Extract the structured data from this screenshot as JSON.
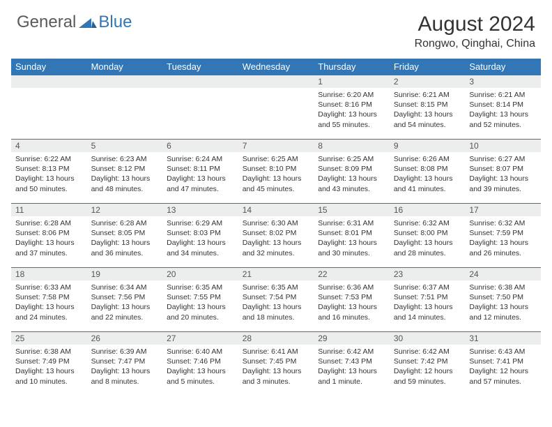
{
  "logo": {
    "general": "General",
    "blue": "Blue"
  },
  "header": {
    "month_title": "August 2024",
    "location": "Rongwo, Qinghai, China"
  },
  "colors": {
    "header_bg": "#3276b5",
    "daynum_bg": "#eceded",
    "border": "#3276b5"
  },
  "dow": [
    "Sunday",
    "Monday",
    "Tuesday",
    "Wednesday",
    "Thursday",
    "Friday",
    "Saturday"
  ],
  "weeks": [
    [
      {
        "n": "",
        "sr": "",
        "ss": "",
        "dl": ""
      },
      {
        "n": "",
        "sr": "",
        "ss": "",
        "dl": ""
      },
      {
        "n": "",
        "sr": "",
        "ss": "",
        "dl": ""
      },
      {
        "n": "",
        "sr": "",
        "ss": "",
        "dl": ""
      },
      {
        "n": "1",
        "sr": "Sunrise: 6:20 AM",
        "ss": "Sunset: 8:16 PM",
        "dl": "Daylight: 13 hours and 55 minutes."
      },
      {
        "n": "2",
        "sr": "Sunrise: 6:21 AM",
        "ss": "Sunset: 8:15 PM",
        "dl": "Daylight: 13 hours and 54 minutes."
      },
      {
        "n": "3",
        "sr": "Sunrise: 6:21 AM",
        "ss": "Sunset: 8:14 PM",
        "dl": "Daylight: 13 hours and 52 minutes."
      }
    ],
    [
      {
        "n": "4",
        "sr": "Sunrise: 6:22 AM",
        "ss": "Sunset: 8:13 PM",
        "dl": "Daylight: 13 hours and 50 minutes."
      },
      {
        "n": "5",
        "sr": "Sunrise: 6:23 AM",
        "ss": "Sunset: 8:12 PM",
        "dl": "Daylight: 13 hours and 48 minutes."
      },
      {
        "n": "6",
        "sr": "Sunrise: 6:24 AM",
        "ss": "Sunset: 8:11 PM",
        "dl": "Daylight: 13 hours and 47 minutes."
      },
      {
        "n": "7",
        "sr": "Sunrise: 6:25 AM",
        "ss": "Sunset: 8:10 PM",
        "dl": "Daylight: 13 hours and 45 minutes."
      },
      {
        "n": "8",
        "sr": "Sunrise: 6:25 AM",
        "ss": "Sunset: 8:09 PM",
        "dl": "Daylight: 13 hours and 43 minutes."
      },
      {
        "n": "9",
        "sr": "Sunrise: 6:26 AM",
        "ss": "Sunset: 8:08 PM",
        "dl": "Daylight: 13 hours and 41 minutes."
      },
      {
        "n": "10",
        "sr": "Sunrise: 6:27 AM",
        "ss": "Sunset: 8:07 PM",
        "dl": "Daylight: 13 hours and 39 minutes."
      }
    ],
    [
      {
        "n": "11",
        "sr": "Sunrise: 6:28 AM",
        "ss": "Sunset: 8:06 PM",
        "dl": "Daylight: 13 hours and 37 minutes."
      },
      {
        "n": "12",
        "sr": "Sunrise: 6:28 AM",
        "ss": "Sunset: 8:05 PM",
        "dl": "Daylight: 13 hours and 36 minutes."
      },
      {
        "n": "13",
        "sr": "Sunrise: 6:29 AM",
        "ss": "Sunset: 8:03 PM",
        "dl": "Daylight: 13 hours and 34 minutes."
      },
      {
        "n": "14",
        "sr": "Sunrise: 6:30 AM",
        "ss": "Sunset: 8:02 PM",
        "dl": "Daylight: 13 hours and 32 minutes."
      },
      {
        "n": "15",
        "sr": "Sunrise: 6:31 AM",
        "ss": "Sunset: 8:01 PM",
        "dl": "Daylight: 13 hours and 30 minutes."
      },
      {
        "n": "16",
        "sr": "Sunrise: 6:32 AM",
        "ss": "Sunset: 8:00 PM",
        "dl": "Daylight: 13 hours and 28 minutes."
      },
      {
        "n": "17",
        "sr": "Sunrise: 6:32 AM",
        "ss": "Sunset: 7:59 PM",
        "dl": "Daylight: 13 hours and 26 minutes."
      }
    ],
    [
      {
        "n": "18",
        "sr": "Sunrise: 6:33 AM",
        "ss": "Sunset: 7:58 PM",
        "dl": "Daylight: 13 hours and 24 minutes."
      },
      {
        "n": "19",
        "sr": "Sunrise: 6:34 AM",
        "ss": "Sunset: 7:56 PM",
        "dl": "Daylight: 13 hours and 22 minutes."
      },
      {
        "n": "20",
        "sr": "Sunrise: 6:35 AM",
        "ss": "Sunset: 7:55 PM",
        "dl": "Daylight: 13 hours and 20 minutes."
      },
      {
        "n": "21",
        "sr": "Sunrise: 6:35 AM",
        "ss": "Sunset: 7:54 PM",
        "dl": "Daylight: 13 hours and 18 minutes."
      },
      {
        "n": "22",
        "sr": "Sunrise: 6:36 AM",
        "ss": "Sunset: 7:53 PM",
        "dl": "Daylight: 13 hours and 16 minutes."
      },
      {
        "n": "23",
        "sr": "Sunrise: 6:37 AM",
        "ss": "Sunset: 7:51 PM",
        "dl": "Daylight: 13 hours and 14 minutes."
      },
      {
        "n": "24",
        "sr": "Sunrise: 6:38 AM",
        "ss": "Sunset: 7:50 PM",
        "dl": "Daylight: 13 hours and 12 minutes."
      }
    ],
    [
      {
        "n": "25",
        "sr": "Sunrise: 6:38 AM",
        "ss": "Sunset: 7:49 PM",
        "dl": "Daylight: 13 hours and 10 minutes."
      },
      {
        "n": "26",
        "sr": "Sunrise: 6:39 AM",
        "ss": "Sunset: 7:47 PM",
        "dl": "Daylight: 13 hours and 8 minutes."
      },
      {
        "n": "27",
        "sr": "Sunrise: 6:40 AM",
        "ss": "Sunset: 7:46 PM",
        "dl": "Daylight: 13 hours and 5 minutes."
      },
      {
        "n": "28",
        "sr": "Sunrise: 6:41 AM",
        "ss": "Sunset: 7:45 PM",
        "dl": "Daylight: 13 hours and 3 minutes."
      },
      {
        "n": "29",
        "sr": "Sunrise: 6:42 AM",
        "ss": "Sunset: 7:43 PM",
        "dl": "Daylight: 13 hours and 1 minute."
      },
      {
        "n": "30",
        "sr": "Sunrise: 6:42 AM",
        "ss": "Sunset: 7:42 PM",
        "dl": "Daylight: 12 hours and 59 minutes."
      },
      {
        "n": "31",
        "sr": "Sunrise: 6:43 AM",
        "ss": "Sunset: 7:41 PM",
        "dl": "Daylight: 12 hours and 57 minutes."
      }
    ]
  ]
}
